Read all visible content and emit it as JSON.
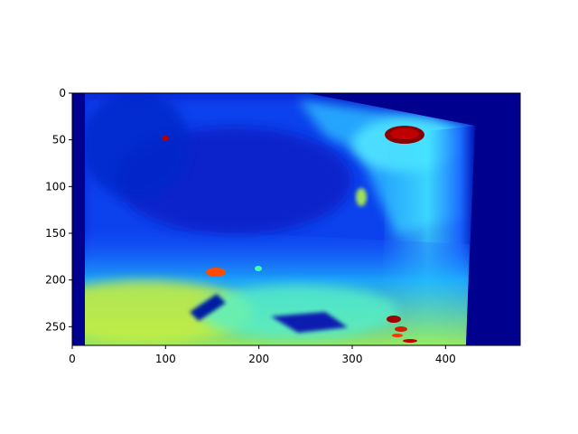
{
  "chart_data": {
    "type": "heatmap",
    "colormap": "jet",
    "title": "",
    "xlabel": "",
    "ylabel": "",
    "image_width": 480,
    "image_height": 270,
    "xlim": [
      0,
      480
    ],
    "ylim": [
      270,
      0
    ],
    "x_ticks": [
      0,
      100,
      200,
      300,
      400
    ],
    "y_ticks": [
      0,
      50,
      100,
      150,
      200,
      250
    ],
    "x_tick_labels": [
      "0",
      "100",
      "200",
      "300",
      "400"
    ],
    "y_tick_labels": [
      "0",
      "50",
      "100",
      "150",
      "200",
      "250"
    ],
    "colorbar": false,
    "grid": false,
    "description": "Depth map rendered with jet colormap: mostly blue/dark-blue upper region, cyan-to-yellow gradient in lower area, bright red blobs near (365,45), (100,48), (155,192), (350,240), dark-navy background outside a warped right edge around x=430."
  }
}
